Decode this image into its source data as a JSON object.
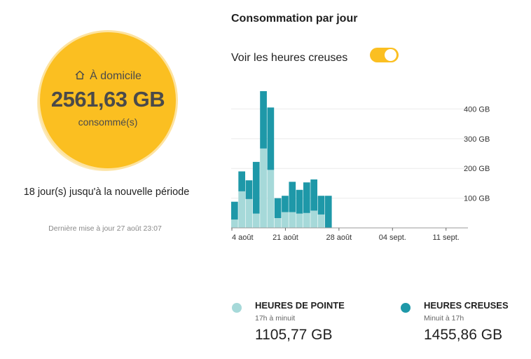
{
  "summary": {
    "location": "À domicile",
    "home_icon": "home-icon",
    "amount": "2561,63 GB",
    "consumed_label": "consommé(s)",
    "days_left": "18 jour(s) jusqu'à la nouvelle période",
    "last_update": "Dernière mise à jour 27 août 23:07"
  },
  "daily": {
    "title": "Consommation par jour",
    "toggle_label": "Voir les heures creuses",
    "toggle_on": true
  },
  "colors": {
    "accent": "#fbbf21",
    "peak": "#a6d9d9",
    "offpeak": "#1e98a8"
  },
  "chart_data": {
    "type": "bar",
    "stacked": true,
    "x_tick_labels": [
      "4 août",
      "21 août",
      "28 août",
      "04 sept.",
      "11 sept."
    ],
    "y_tick_labels": [
      "400 GB",
      "300 GB",
      "200 GB",
      "100 GB"
    ],
    "y_ticks": [
      400,
      300,
      200,
      100
    ],
    "ylim": [
      0,
      460
    ],
    "days_total": 44,
    "grid": true,
    "series": [
      {
        "name": "HEURES DE POINTE",
        "values": [
          28,
          123,
          97,
          48,
          267,
          195,
          33,
          53,
          53,
          48,
          50,
          58,
          45,
          0
        ]
      },
      {
        "name": "HEURES CREUSES",
        "values": [
          60,
          67,
          63,
          174,
          193,
          210,
          67,
          55,
          102,
          80,
          103,
          105,
          63,
          108
        ]
      }
    ]
  },
  "legend": [
    {
      "title": "HEURES DE POINTE",
      "subtitle": "17h à minuit",
      "value": "1105,77 GB"
    },
    {
      "title": "HEURES CREUSES",
      "subtitle": "Minuit à 17h",
      "value": "1455,86 GB"
    }
  ]
}
